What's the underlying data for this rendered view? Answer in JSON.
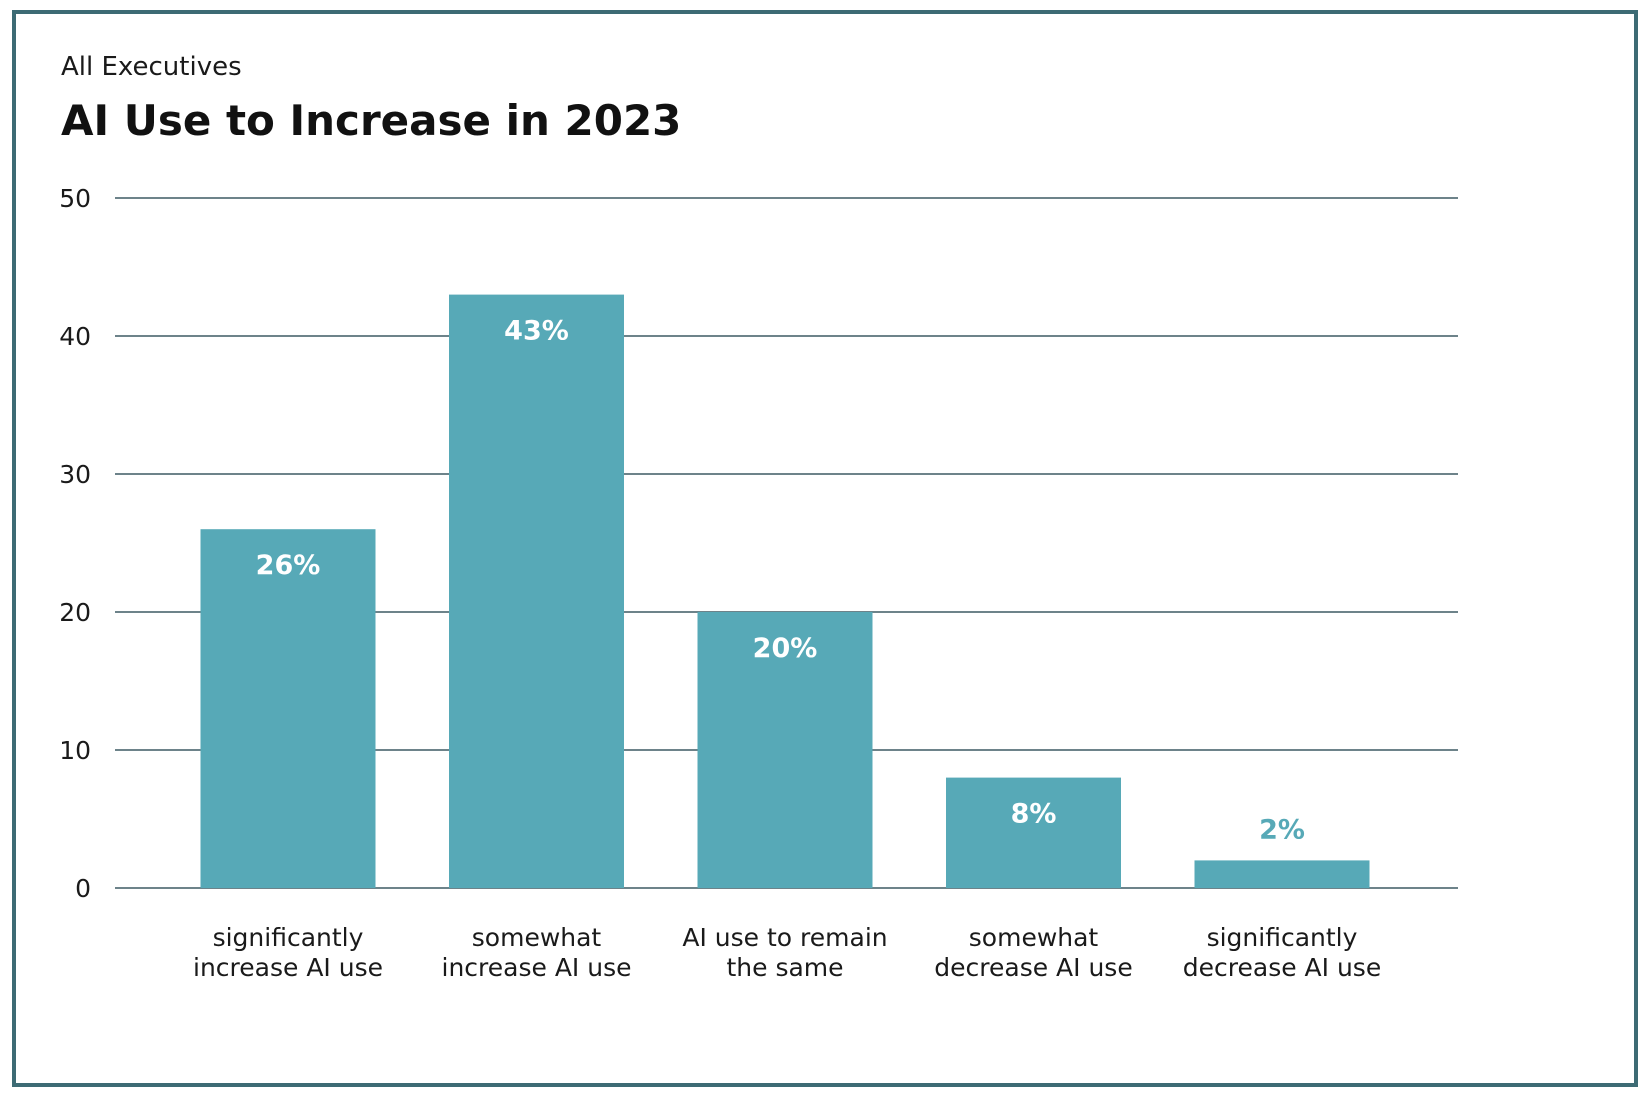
{
  "subtitle": "All Executives",
  "colors": {
    "bar": "#57a9b7",
    "grid": "#3d5a63",
    "frame": "#3d6b74",
    "label_inside": "#ffffff",
    "label_outside": "#57a9b7"
  },
  "chart_data": {
    "type": "bar",
    "title": "AI Use to Increase in 2023",
    "subtitle": "All Executives",
    "xlabel": "",
    "ylabel": "",
    "ylim": [
      0,
      50
    ],
    "yticks": [
      0,
      10,
      20,
      30,
      40,
      50
    ],
    "grid": true,
    "categories": [
      [
        "significantly",
        "increase AI use"
      ],
      [
        "somewhat",
        "increase AI use"
      ],
      [
        "AI use to remain",
        "the same"
      ],
      [
        "somewhat",
        "decrease AI use"
      ],
      [
        "significantly",
        "decrease AI use"
      ]
    ],
    "values": [
      26,
      43,
      20,
      8,
      2
    ],
    "value_labels": [
      "26%",
      "43%",
      "20%",
      "8%",
      "2%"
    ]
  }
}
